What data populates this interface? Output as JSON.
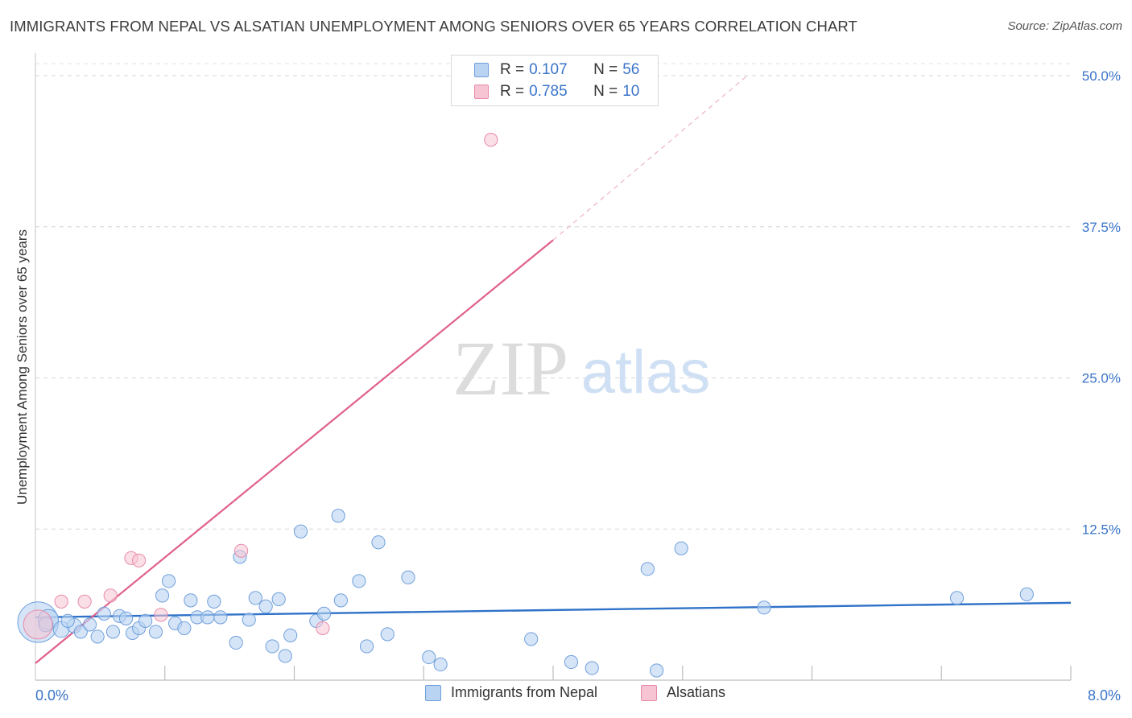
{
  "title": "IMMIGRANTS FROM NEPAL VS ALSATIAN UNEMPLOYMENT AMONG SENIORS OVER 65 YEARS CORRELATION CHART",
  "source": "Source: ZipAtlas.com",
  "watermark": {
    "zip": "ZIP",
    "atlas": "atlas"
  },
  "legend_top": {
    "rows": [
      {
        "r_label": "R = ",
        "r_value": "0.107",
        "n_label": "N = ",
        "n_value": "56"
      },
      {
        "r_label": "R = ",
        "r_value": "0.785",
        "n_label": "N = ",
        "n_value": "10"
      }
    ]
  },
  "legend_bottom": [
    "Immigrants from Nepal",
    "Alsatians"
  ],
  "colors": {
    "blue_fill": "#b9d3f2",
    "blue_stroke": "#6f9fdc",
    "blue_line": "#2f72c8",
    "pink_fill": "#f7c4d4",
    "pink_stroke": "#e78aa8",
    "pink_line": "#e0608a",
    "axis_text": "#3a74c8",
    "grid": "#d4d4d4"
  },
  "chart_data": {
    "type": "scatter",
    "title": "IMMIGRANTS FROM NEPAL VS ALSATIAN UNEMPLOYMENT AMONG SENIORS OVER 65 YEARS CORRELATION CHART",
    "xlabel": "",
    "ylabel": "Unemployment Among Seniors over 65 years",
    "xlim": [
      0,
      8
    ],
    "ylim": [
      0,
      51
    ],
    "x_tick_labels": [
      "0.0%",
      "8.0%"
    ],
    "y_ticks": [
      12.5,
      25,
      37.5,
      50
    ],
    "y_tick_labels": [
      "12.5%",
      "25.0%",
      "37.5%",
      "50.0%"
    ],
    "grid": true,
    "legend": "bottom",
    "series": [
      {
        "name": "Immigrants from Nepal",
        "r": 0.107,
        "n": 56,
        "points": [
          [
            0.02,
            4.8,
            28
          ],
          [
            0.1,
            5.0,
            14
          ],
          [
            0.2,
            4.2,
            11
          ],
          [
            0.3,
            4.5,
            10
          ],
          [
            0.35,
            4.0,
            9
          ],
          [
            0.42,
            4.6,
            9
          ],
          [
            0.48,
            3.6,
            9
          ],
          [
            0.53,
            5.5,
            9
          ],
          [
            0.6,
            4.0,
            9
          ],
          [
            0.65,
            5.3,
            9
          ],
          [
            0.7,
            5.1,
            9
          ],
          [
            0.75,
            3.9,
            9
          ],
          [
            0.8,
            4.3,
            9
          ],
          [
            0.85,
            4.9,
            9
          ],
          [
            0.93,
            4.0,
            9
          ],
          [
            0.98,
            7.0,
            9
          ],
          [
            1.03,
            8.2,
            9
          ],
          [
            1.08,
            4.7,
            9
          ],
          [
            1.15,
            4.3,
            9
          ],
          [
            1.2,
            6.6,
            9
          ],
          [
            1.25,
            5.2,
            9
          ],
          [
            1.33,
            5.2,
            9
          ],
          [
            1.38,
            6.5,
            9
          ],
          [
            1.43,
            5.2,
            9
          ],
          [
            1.55,
            3.1,
            9
          ],
          [
            1.58,
            10.2,
            9
          ],
          [
            1.65,
            5.0,
            9
          ],
          [
            1.7,
            6.8,
            9
          ],
          [
            1.78,
            6.1,
            9
          ],
          [
            1.83,
            2.8,
            9
          ],
          [
            1.88,
            6.7,
            9
          ],
          [
            1.93,
            2.0,
            9
          ],
          [
            1.97,
            3.7,
            9
          ],
          [
            2.05,
            12.3,
            9
          ],
          [
            2.17,
            4.9,
            9
          ],
          [
            2.23,
            5.5,
            9
          ],
          [
            2.34,
            13.6,
            9
          ],
          [
            2.36,
            6.6,
            9
          ],
          [
            2.5,
            8.2,
            9
          ],
          [
            2.56,
            2.8,
            9
          ],
          [
            2.65,
            11.4,
            9
          ],
          [
            2.72,
            3.8,
            9
          ],
          [
            2.88,
            8.5,
            9
          ],
          [
            3.04,
            1.9,
            9
          ],
          [
            3.13,
            1.3,
            9
          ],
          [
            3.83,
            3.4,
            9
          ],
          [
            4.14,
            1.5,
            9
          ],
          [
            4.3,
            1.0,
            9
          ],
          [
            4.73,
            9.2,
            9
          ],
          [
            4.8,
            0.8,
            9
          ],
          [
            4.99,
            10.9,
            9
          ],
          [
            5.63,
            6.0,
            9
          ],
          [
            7.12,
            6.8,
            9
          ],
          [
            7.66,
            7.1,
            9
          ],
          [
            0.08,
            4.6,
            10
          ],
          [
            0.25,
            4.9,
            9
          ]
        ],
        "trend": {
          "x": [
            0,
            8
          ],
          "y": [
            5.2,
            6.4
          ],
          "style": "solid"
        }
      },
      {
        "name": "Alsatians",
        "r": 0.785,
        "n": 10,
        "points": [
          [
            0.02,
            4.6,
            20
          ],
          [
            0.2,
            6.5,
            9
          ],
          [
            0.38,
            6.5,
            9
          ],
          [
            0.58,
            7.0,
            9
          ],
          [
            0.74,
            10.1,
            9
          ],
          [
            0.8,
            9.9,
            9
          ],
          [
            0.97,
            5.4,
            9
          ],
          [
            1.59,
            10.7,
            9
          ],
          [
            2.22,
            4.3,
            9
          ],
          [
            3.52,
            44.7,
            9
          ]
        ],
        "trend": {
          "x": [
            0,
            4.0
          ],
          "y": [
            1.4,
            36.4
          ],
          "style": "solid"
        },
        "trend_extension": {
          "x": [
            4.0,
            5.5
          ],
          "y": [
            36.4,
            50.0
          ],
          "style": "dashed"
        }
      }
    ]
  }
}
